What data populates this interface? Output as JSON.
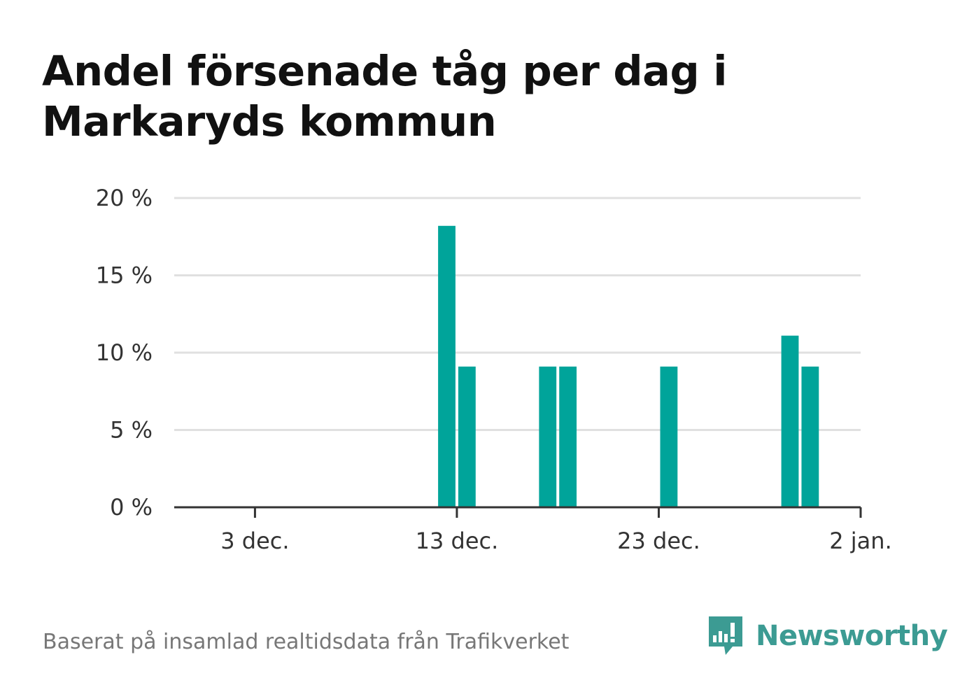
{
  "title": "Andel försenade tåg per dag i Markaryds kommun",
  "source": "Baserat på insamlad realtidsdata från Trafikverket",
  "brand": {
    "name": "Newsworthy",
    "icon": "bar-chart-speech-bubble-icon",
    "color": "#3c9b93"
  },
  "chart_data": {
    "type": "bar",
    "x": [
      "2023-11-29",
      "2023-11-30",
      "2023-12-01",
      "2023-12-02",
      "2023-12-03",
      "2023-12-04",
      "2023-12-05",
      "2023-12-06",
      "2023-12-07",
      "2023-12-08",
      "2023-12-09",
      "2023-12-10",
      "2023-12-11",
      "2023-12-12",
      "2023-12-13",
      "2023-12-14",
      "2023-12-15",
      "2023-12-16",
      "2023-12-17",
      "2023-12-18",
      "2023-12-19",
      "2023-12-20",
      "2023-12-21",
      "2023-12-22",
      "2023-12-23",
      "2023-12-24",
      "2023-12-25",
      "2023-12-26",
      "2023-12-27",
      "2023-12-28",
      "2023-12-29",
      "2023-12-30",
      "2023-12-31",
      "2024-01-01"
    ],
    "values": [
      0,
      0,
      0,
      0,
      0,
      0,
      0,
      0,
      0,
      0,
      0,
      0,
      0,
      18.2,
      9.1,
      0,
      0,
      0,
      9.1,
      9.1,
      0,
      0,
      0,
      0,
      9.1,
      0,
      0,
      0,
      0,
      0,
      11.1,
      9.1,
      0,
      0
    ],
    "xticks": [
      {
        "date": "2023-12-03",
        "label": "3 dec."
      },
      {
        "date": "2023-12-13",
        "label": "13 dec."
      },
      {
        "date": "2023-12-23",
        "label": "23 dec."
      },
      {
        "date": "2024-01-02",
        "label": "2 jan."
      }
    ],
    "yticks": [
      {
        "value": 0,
        "label": "0 %"
      },
      {
        "value": 5,
        "label": "5 %"
      },
      {
        "value": 10,
        "label": "10 %"
      },
      {
        "value": 15,
        "label": "15 %"
      },
      {
        "value": 20,
        "label": "20 %"
      }
    ],
    "ylim": [
      0,
      20
    ],
    "xlim": [
      "2023-11-29",
      "2024-01-02"
    ],
    "bar_color": "#00a49a",
    "grid": true,
    "grid_color": "#e0e0e0",
    "axis_color": "#333333"
  }
}
